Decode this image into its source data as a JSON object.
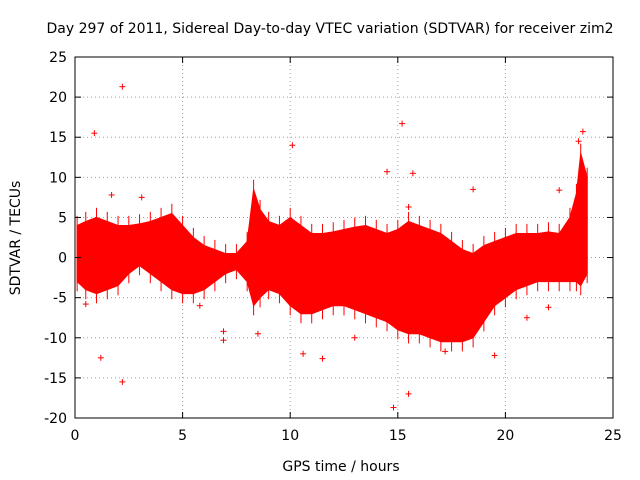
{
  "chart_data": {
    "type": "scatter",
    "title": "Day 297 of 2011, Sidereal Day-to-day VTEC variation (SDTVAR) for receiver zim2",
    "xlabel": "GPS time / hours",
    "ylabel": "SDTVAR / TECUs",
    "xlim": [
      0,
      25
    ],
    "ylim": [
      -20,
      25
    ],
    "xticks": [
      0,
      5,
      10,
      15,
      20,
      25
    ],
    "yticks": [
      -20,
      -15,
      -10,
      -5,
      0,
      5,
      10,
      15,
      20,
      25
    ],
    "grid": true,
    "marker": "+",
    "color": "#ff0000",
    "envelope": {
      "x": [
        0.1,
        0.5,
        1.0,
        1.5,
        2.0,
        2.5,
        3.0,
        3.5,
        4.0,
        4.5,
        5.0,
        5.5,
        6.0,
        6.5,
        7.0,
        7.5,
        8.0,
        8.3,
        8.6,
        9.0,
        9.5,
        10.0,
        10.5,
        11.0,
        11.5,
        12.0,
        12.5,
        13.0,
        13.5,
        14.0,
        14.5,
        15.0,
        15.5,
        16.0,
        16.5,
        17.0,
        17.5,
        18.0,
        18.5,
        19.0,
        19.5,
        20.0,
        20.5,
        21.0,
        21.5,
        22.0,
        22.5,
        23.0,
        23.3,
        23.5,
        23.8
      ],
      "upper": [
        4.0,
        4.5,
        5.0,
        4.5,
        4.0,
        4.0,
        4.2,
        4.5,
        5.0,
        5.5,
        4.0,
        2.5,
        1.5,
        1.0,
        0.5,
        0.5,
        2.0,
        8.5,
        6.0,
        4.5,
        4.0,
        5.0,
        4.0,
        3.0,
        3.0,
        3.2,
        3.5,
        3.8,
        4.0,
        3.5,
        3.0,
        3.5,
        4.5,
        4.0,
        3.5,
        3.0,
        2.0,
        1.0,
        0.5,
        1.5,
        2.0,
        2.5,
        3.0,
        3.0,
        3.0,
        3.2,
        3.0,
        5.0,
        8.0,
        13.0,
        10.0
      ],
      "lower": [
        -3.0,
        -4.0,
        -4.5,
        -4.0,
        -3.5,
        -2.0,
        -1.0,
        -2.0,
        -3.0,
        -4.0,
        -4.5,
        -4.5,
        -4.0,
        -3.0,
        -2.0,
        -1.5,
        -3.0,
        -6.0,
        -5.0,
        -4.0,
        -4.5,
        -6.0,
        -7.0,
        -7.0,
        -6.5,
        -6.0,
        -6.0,
        -6.5,
        -7.0,
        -7.5,
        -8.0,
        -9.0,
        -9.5,
        -9.5,
        -10.0,
        -10.5,
        -10.5,
        -10.5,
        -10.0,
        -8.0,
        -6.0,
        -5.0,
        -4.0,
        -3.5,
        -3.0,
        -3.0,
        -3.0,
        -3.0,
        -3.0,
        -3.5,
        -2.0
      ]
    },
    "outliers": [
      {
        "x": 2.2,
        "y": 21.3
      },
      {
        "x": 0.9,
        "y": 15.5
      },
      {
        "x": 10.1,
        "y": 14.0
      },
      {
        "x": 15.2,
        "y": 16.7
      },
      {
        "x": 23.6,
        "y": 15.7
      },
      {
        "x": 23.4,
        "y": 14.5
      },
      {
        "x": 14.5,
        "y": 10.7
      },
      {
        "x": 18.5,
        "y": 8.5
      },
      {
        "x": 22.5,
        "y": 8.4
      },
      {
        "x": 15.7,
        "y": 10.5
      },
      {
        "x": 15.5,
        "y": 6.3
      },
      {
        "x": 2.2,
        "y": -15.5
      },
      {
        "x": 14.8,
        "y": -18.7
      },
      {
        "x": 1.2,
        "y": -12.5
      },
      {
        "x": 11.5,
        "y": -12.6
      },
      {
        "x": 15.5,
        "y": -17.0
      },
      {
        "x": 17.2,
        "y": -11.7
      },
      {
        "x": 19.5,
        "y": -12.2
      },
      {
        "x": 6.9,
        "y": -10.3
      },
      {
        "x": 6.9,
        "y": -9.2
      },
      {
        "x": 8.5,
        "y": -9.5
      },
      {
        "x": 10.6,
        "y": -12.0
      },
      {
        "x": 5.8,
        "y": -6.0
      },
      {
        "x": 1.7,
        "y": 7.8
      },
      {
        "x": 3.1,
        "y": 7.5
      },
      {
        "x": 22.0,
        "y": -6.2
      },
      {
        "x": 0.5,
        "y": -5.8
      },
      {
        "x": 13.0,
        "y": -10.0
      },
      {
        "x": 16.5,
        "y": -7.0
      },
      {
        "x": 21.0,
        "y": -7.5
      }
    ]
  }
}
